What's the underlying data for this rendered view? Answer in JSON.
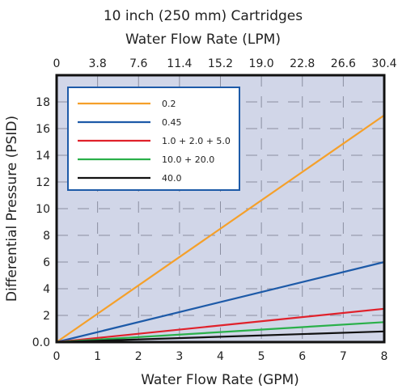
{
  "chart_data": {
    "type": "line",
    "title": "10 inch (250 mm) Cartridges",
    "top_axis_label": "Water Flow Rate (LPM)",
    "xlabel": "Water Flow Rate (GPM)",
    "ylabel": "Differential Pressure (PSID)",
    "xlim": [
      0,
      8
    ],
    "ylim": [
      0,
      20
    ],
    "x_ticks": [
      0,
      1,
      2,
      3,
      4,
      5,
      6,
      7,
      8
    ],
    "x_tick_labels": [
      "0",
      "1",
      "2",
      "3",
      "4",
      "5",
      "6",
      "7",
      "8"
    ],
    "top_ticks": [
      "0",
      "3.8",
      "7.6",
      "11.4",
      "15.2",
      "19.0",
      "22.8",
      "26.6",
      "30.4"
    ],
    "y_ticks": [
      0,
      2,
      4,
      6,
      8,
      10,
      12,
      14,
      16,
      18
    ],
    "y_tick_labels": [
      "0.0",
      "2",
      "4",
      "6",
      "8",
      "10",
      "12",
      "14",
      "16",
      "18"
    ],
    "grid": true,
    "legend_position": "top-left",
    "series": [
      {
        "name": "0.2",
        "color": "#f5a02a",
        "x": [
          0,
          8
        ],
        "y": [
          0,
          17
        ]
      },
      {
        "name": "0.45",
        "color": "#1d5aa8",
        "x": [
          0,
          8
        ],
        "y": [
          0,
          6
        ]
      },
      {
        "name": "1.0 + 2.0 + 5.0",
        "color": "#e0212b",
        "x": [
          0,
          8
        ],
        "y": [
          0,
          2.5
        ]
      },
      {
        "name": "10.0 + 20.0",
        "color": "#2ab04a",
        "x": [
          0,
          8
        ],
        "y": [
          0,
          1.5
        ]
      },
      {
        "name": "40.0",
        "color": "#111111",
        "x": [
          0,
          8
        ],
        "y": [
          0,
          0.8
        ]
      }
    ],
    "plot_background": "#d1d6e8",
    "legend_border_color": "#1d5aa8"
  }
}
